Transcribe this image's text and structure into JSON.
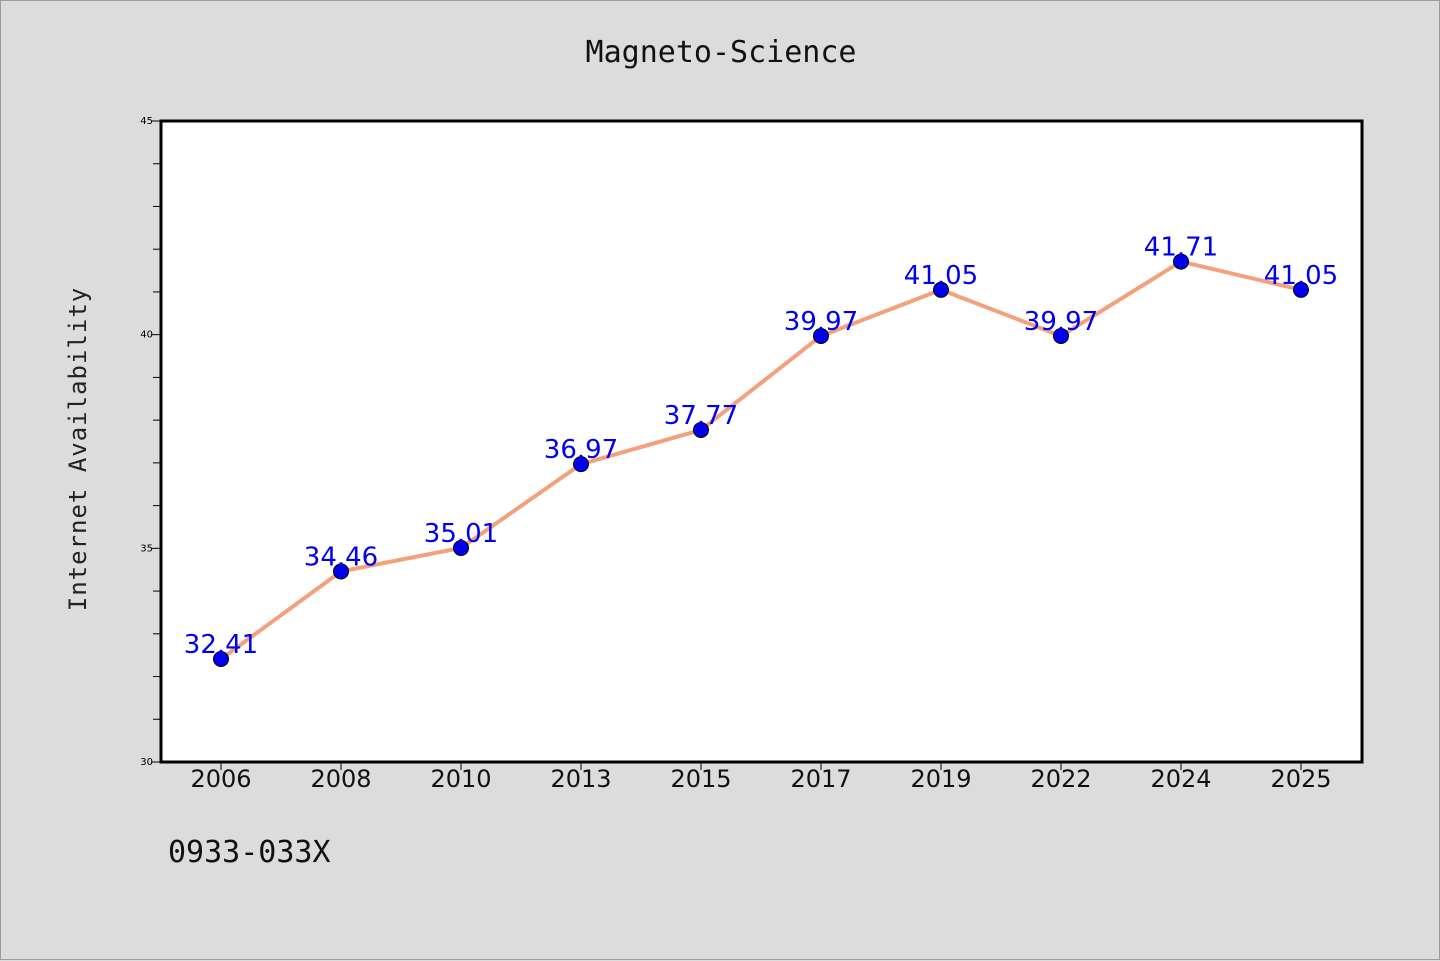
{
  "title": "Magneto-Science",
  "ylabel": "Internet Availability",
  "footer_code": "0933-033X",
  "colors": {
    "background": "#dcdcdc",
    "plot_bg": "#ffffff",
    "line": "#f4a07c",
    "marker": "#0000ee",
    "label": "#0000ee"
  },
  "chart_data": {
    "type": "line",
    "title": "Magneto-Science",
    "xlabel": "",
    "ylabel": "Internet Availability",
    "categories": [
      "2006",
      "2008",
      "2010",
      "2013",
      "2015",
      "2017",
      "2019",
      "2022",
      "2024",
      "2025"
    ],
    "series": [
      {
        "values": [
          32.41,
          34.46,
          35.01,
          36.97,
          37.77,
          39.97,
          41.05,
          39.97,
          41.71,
          41.05
        ]
      }
    ],
    "ylim": [
      30,
      45
    ],
    "yticks": [
      30,
      35,
      40,
      45
    ],
    "grid": false,
    "legend": "none"
  }
}
